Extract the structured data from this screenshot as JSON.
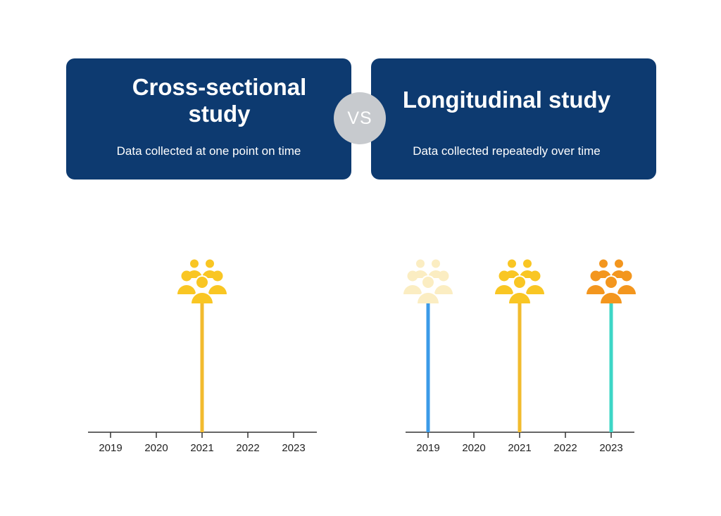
{
  "cross_sectional": {
    "title_line1": "Cross-sectional",
    "title_line2": "study",
    "subtitle": "Data collected at one point on time",
    "years": [
      "2019",
      "2020",
      "2021",
      "2022",
      "2023"
    ],
    "markers": [
      {
        "year": "2021",
        "line_color": "#f2bb2e",
        "icon_color": "#f9c623"
      }
    ]
  },
  "vs_label": "VS",
  "longitudinal": {
    "title": "Longitudinal study",
    "subtitle": "Data collected repeatedly over time",
    "years": [
      "2019",
      "2020",
      "2021",
      "2022",
      "2023"
    ],
    "markers": [
      {
        "year": "2019",
        "line_color": "#3b9be8",
        "icon_color": "#fbedc2"
      },
      {
        "year": "2021",
        "line_color": "#f2bb2e",
        "icon_color": "#f9c623"
      },
      {
        "year": "2023",
        "line_color": "#3dd6c6",
        "icon_color": "#f3961e"
      }
    ]
  },
  "colors": {
    "card_bg": "#0d3a70",
    "vs_bg": "#c7cace",
    "axis": "#333333"
  },
  "icon_name": "group-people-icon"
}
